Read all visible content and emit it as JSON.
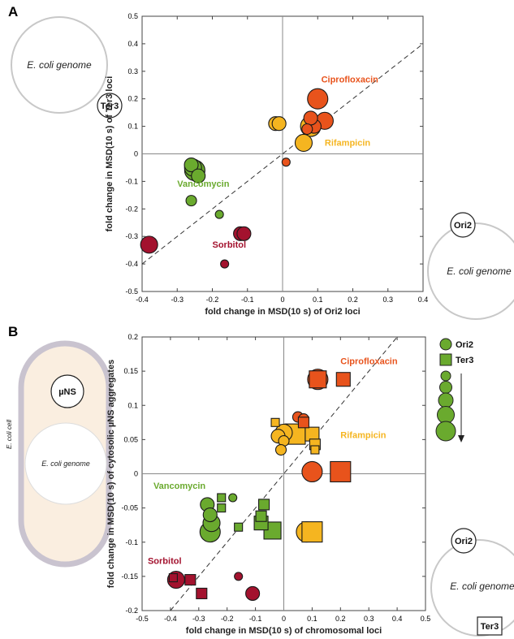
{
  "panel_a": {
    "label": "A",
    "genome_label": "E. coli genome",
    "locus_ter3": "Ter3",
    "locus_ori2": "Ori2",
    "genome_label_right": "E. coli genome"
  },
  "panel_b": {
    "label": "B",
    "cell_label": "E. coli cell",
    "uns_label": "µNS",
    "genome_label": "E. coli genome",
    "legend": {
      "ori2": "Ori2",
      "ter3": "Ter3"
    },
    "locus_ori2": "Ori2",
    "locus_ter3": "Ter3",
    "genome_label_right": "E. coli genome"
  },
  "colors": {
    "ciprofloxacin": "#e8531c",
    "rifampicin": "#f5b520",
    "vancomycin": "#6aaa2e",
    "sorbitol": "#a3122e"
  },
  "chart_data": [
    {
      "type": "scatter",
      "panel": "A",
      "xlabel": "fold change in MSD(10 s) of Ori2 loci",
      "ylabel": "fold change in MSD(10 s) of Ter3 loci",
      "xlim": [
        -0.4,
        0.4
      ],
      "ylim": [
        -0.5,
        0.5
      ],
      "xticks": [
        "-0.4",
        "-0.3",
        "-0.2",
        "-0.1",
        "0",
        "0.1",
        "0.2",
        "0.3",
        "0.4"
      ],
      "yticks": [
        "-0.5",
        "-0.4",
        "-0.3",
        "-0.2",
        "-0.1",
        "0",
        "0.1",
        "0.2",
        "0.3",
        "0.4",
        "0.5"
      ],
      "diagonal": "y = x",
      "annotations": [
        {
          "text": "Ciprofloxacin",
          "x": 0.11,
          "y": 0.26,
          "group": "ciprofloxacin"
        },
        {
          "text": "Rifampicin",
          "x": 0.12,
          "y": 0.03,
          "group": "rifampicin"
        },
        {
          "text": "Vancomycin",
          "x": -0.3,
          "y": -0.12,
          "group": "vancomycin"
        },
        {
          "text": "Sorbitol",
          "x": -0.2,
          "y": -0.34,
          "group": "sorbitol"
        }
      ],
      "points": [
        {
          "x": 0.1,
          "y": 0.2,
          "size": 5,
          "group": "ciprofloxacin"
        },
        {
          "x": 0.12,
          "y": 0.12,
          "size": 4,
          "group": "ciprofloxacin"
        },
        {
          "x": 0.09,
          "y": 0.1,
          "size": 3,
          "group": "ciprofloxacin"
        },
        {
          "x": 0.08,
          "y": 0.13,
          "size": 3,
          "group": "ciprofloxacin"
        },
        {
          "x": 0.07,
          "y": 0.09,
          "size": 2,
          "group": "ciprofloxacin"
        },
        {
          "x": 0.01,
          "y": -0.03,
          "size": 1,
          "group": "ciprofloxacin"
        },
        {
          "x": -0.02,
          "y": 0.11,
          "size": 3,
          "group": "rifampicin"
        },
        {
          "x": -0.01,
          "y": 0.11,
          "size": 3,
          "group": "rifampicin"
        },
        {
          "x": 0.08,
          "y": 0.1,
          "size": 5,
          "group": "rifampicin"
        },
        {
          "x": 0.06,
          "y": 0.04,
          "size": 4,
          "group": "rifampicin"
        },
        {
          "x": -0.26,
          "y": -0.04,
          "size": 3,
          "group": "vancomycin"
        },
        {
          "x": -0.255,
          "y": -0.05,
          "size": 4,
          "group": "vancomycin"
        },
        {
          "x": -0.25,
          "y": -0.06,
          "size": 5,
          "group": "vancomycin"
        },
        {
          "x": -0.24,
          "y": -0.08,
          "size": 3,
          "group": "vancomycin"
        },
        {
          "x": -0.26,
          "y": -0.17,
          "size": 2,
          "group": "vancomycin"
        },
        {
          "x": -0.18,
          "y": -0.22,
          "size": 1,
          "group": "vancomycin"
        },
        {
          "x": -0.38,
          "y": -0.33,
          "size": 4,
          "group": "sorbitol"
        },
        {
          "x": -0.12,
          "y": -0.29,
          "size": 3,
          "group": "sorbitol"
        },
        {
          "x": -0.11,
          "y": -0.29,
          "size": 3,
          "group": "sorbitol"
        },
        {
          "x": -0.165,
          "y": -0.4,
          "size": 1,
          "group": "sorbitol"
        }
      ]
    },
    {
      "type": "scatter",
      "panel": "B",
      "xlabel": "fold change in MSD(10 s) of chromosomal loci",
      "ylabel": "fold change in MSD(10 s) of cytosolic µNS aggregates",
      "xlim": [
        -0.5,
        0.5
      ],
      "ylim": [
        -0.2,
        0.2
      ],
      "xticks": [
        "-0.5",
        "-0.4",
        "-0.3",
        "-0.2",
        "-0.1",
        "0",
        "0.1",
        "0.2",
        "0.3",
        "0.4",
        "0.5"
      ],
      "yticks": [
        "-0.2",
        "-0.15",
        "-0.1",
        "-0.05",
        "0",
        "0.05",
        "0.1",
        "0.15",
        "0.2"
      ],
      "diagonal": "y = 0.5x",
      "annotations": [
        {
          "text": "Ciprofloxacin",
          "x": 0.2,
          "y": 0.16,
          "group": "ciprofloxacin"
        },
        {
          "text": "Rifampicin",
          "x": 0.2,
          "y": 0.052,
          "group": "rifampicin"
        },
        {
          "text": "Vancomycin",
          "x": -0.46,
          "y": -0.022,
          "group": "vancomycin"
        },
        {
          "text": "Sorbitol",
          "x": -0.48,
          "y": -0.132,
          "group": "sorbitol"
        }
      ],
      "points": [
        {
          "x": 0.12,
          "y": 0.138,
          "size": 5,
          "shape": "circle",
          "group": "ciprofloxacin"
        },
        {
          "x": 0.1,
          "y": 0.003,
          "size": 5,
          "shape": "circle",
          "group": "ciprofloxacin"
        },
        {
          "x": 0.05,
          "y": 0.083,
          "size": 2,
          "shape": "circle",
          "group": "ciprofloxacin"
        },
        {
          "x": 0.07,
          "y": 0.08,
          "size": 2,
          "shape": "circle",
          "group": "ciprofloxacin"
        },
        {
          "x": 0.12,
          "y": 0.138,
          "size": 4,
          "shape": "square",
          "group": "ciprofloxacin"
        },
        {
          "x": 0.21,
          "y": 0.138,
          "size": 3,
          "shape": "square",
          "group": "ciprofloxacin"
        },
        {
          "x": 0.2,
          "y": 0.003,
          "size": 5,
          "shape": "square",
          "group": "ciprofloxacin"
        },
        {
          "x": 0.07,
          "y": 0.075,
          "size": 2,
          "shape": "square",
          "group": "ciprofloxacin"
        },
        {
          "x": 0.0,
          "y": 0.06,
          "size": 4,
          "shape": "circle",
          "group": "rifampicin"
        },
        {
          "x": -0.02,
          "y": 0.055,
          "size": 3,
          "shape": "circle",
          "group": "rifampicin"
        },
        {
          "x": 0.0,
          "y": 0.048,
          "size": 2,
          "shape": "circle",
          "group": "rifampicin"
        },
        {
          "x": -0.01,
          "y": 0.035,
          "size": 2,
          "shape": "circle",
          "group": "rifampicin"
        },
        {
          "x": 0.08,
          "y": -0.085,
          "size": 5,
          "shape": "circle",
          "group": "rifampicin"
        },
        {
          "x": 0.04,
          "y": 0.058,
          "size": 5,
          "shape": "square",
          "group": "rifampicin"
        },
        {
          "x": 0.1,
          "y": 0.058,
          "size": 3,
          "shape": "square",
          "group": "rifampicin"
        },
        {
          "x": 0.11,
          "y": 0.043,
          "size": 2,
          "shape": "square",
          "group": "rifampicin"
        },
        {
          "x": 0.11,
          "y": 0.035,
          "size": 1,
          "shape": "square",
          "group": "rifampicin"
        },
        {
          "x": -0.03,
          "y": 0.075,
          "size": 1,
          "shape": "square",
          "group": "rifampicin"
        },
        {
          "x": 0.1,
          "y": -0.085,
          "size": 5,
          "shape": "square",
          "group": "rifampicin"
        },
        {
          "x": -0.27,
          "y": -0.045,
          "size": 3,
          "shape": "circle",
          "group": "vancomycin"
        },
        {
          "x": -0.26,
          "y": -0.06,
          "size": 3,
          "shape": "circle",
          "group": "vancomycin"
        },
        {
          "x": -0.255,
          "y": -0.072,
          "size": 4,
          "shape": "circle",
          "group": "vancomycin"
        },
        {
          "x": -0.26,
          "y": -0.085,
          "size": 5,
          "shape": "circle",
          "group": "vancomycin"
        },
        {
          "x": -0.18,
          "y": -0.035,
          "size": 1,
          "shape": "circle",
          "group": "vancomycin"
        },
        {
          "x": -0.22,
          "y": -0.035,
          "size": 1,
          "shape": "square",
          "group": "vancomycin"
        },
        {
          "x": -0.22,
          "y": -0.05,
          "size": 1,
          "shape": "square",
          "group": "vancomycin"
        },
        {
          "x": -0.07,
          "y": -0.045,
          "size": 2,
          "shape": "square",
          "group": "vancomycin"
        },
        {
          "x": -0.08,
          "y": -0.062,
          "size": 2,
          "shape": "square",
          "group": "vancomycin"
        },
        {
          "x": -0.08,
          "y": -0.072,
          "size": 3,
          "shape": "square",
          "group": "vancomycin"
        },
        {
          "x": -0.04,
          "y": -0.083,
          "size": 4,
          "shape": "square",
          "group": "vancomycin"
        },
        {
          "x": -0.16,
          "y": -0.078,
          "size": 1,
          "shape": "square",
          "group": "vancomycin"
        },
        {
          "x": -0.38,
          "y": -0.155,
          "size": 4,
          "shape": "circle",
          "group": "sorbitol"
        },
        {
          "x": -0.11,
          "y": -0.175,
          "size": 3,
          "shape": "circle",
          "group": "sorbitol"
        },
        {
          "x": -0.16,
          "y": -0.15,
          "size": 1,
          "shape": "circle",
          "group": "sorbitol"
        },
        {
          "x": -0.39,
          "y": -0.152,
          "size": 1,
          "shape": "square",
          "group": "sorbitol"
        },
        {
          "x": -0.33,
          "y": -0.155,
          "size": 2,
          "shape": "square",
          "group": "sorbitol"
        },
        {
          "x": -0.29,
          "y": -0.175,
          "size": 2,
          "shape": "square",
          "group": "sorbitol"
        }
      ]
    }
  ]
}
